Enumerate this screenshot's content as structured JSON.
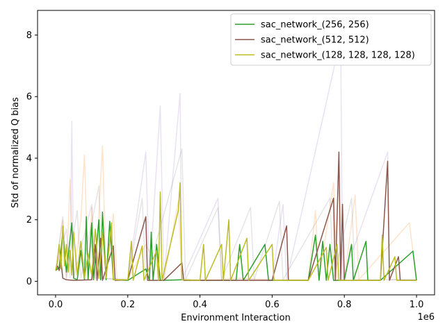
{
  "chart_data": {
    "type": "line",
    "title": "",
    "xlabel": "Environment Interaction",
    "ylabel": "Std of normalized Q bias",
    "x_offset_label": "1e6",
    "xlim": [
      -0.05,
      1.05
    ],
    "ylim": [
      -0.44,
      8.8
    ],
    "x_ticks": [
      0.0,
      0.2,
      0.4,
      0.6,
      0.8,
      1.0
    ],
    "x_tick_labels": [
      "0.0",
      "0.2",
      "0.4",
      "0.6",
      "0.8",
      "1.0"
    ],
    "y_ticks": [
      0,
      2,
      4,
      6,
      8
    ],
    "y_tick_labels": [
      "0",
      "2",
      "4",
      "6",
      "8"
    ],
    "grid": false,
    "legend_position": "top-right",
    "series": [
      {
        "name": "sac_network_(256, 256)",
        "color": "#2ca02c",
        "points": [
          [
            0.0,
            0.35
          ],
          [
            0.01,
            0.45
          ],
          [
            0.02,
            1.6
          ],
          [
            0.03,
            0.3
          ],
          [
            0.045,
            1.9
          ],
          [
            0.05,
            0.1
          ],
          [
            0.06,
            0.05
          ],
          [
            0.07,
            1.0
          ],
          [
            0.08,
            0.05
          ],
          [
            0.085,
            2.1
          ],
          [
            0.09,
            0.05
          ],
          [
            0.1,
            1.9
          ],
          [
            0.105,
            0.05
          ],
          [
            0.12,
            2.0
          ],
          [
            0.125,
            0.05
          ],
          [
            0.13,
            2.25
          ],
          [
            0.14,
            0.05
          ],
          [
            0.15,
            1.95
          ],
          [
            0.16,
            0.05
          ],
          [
            0.2,
            0.03
          ],
          [
            0.25,
            0.4
          ],
          [
            0.26,
            0.03
          ],
          [
            0.265,
            1.6
          ],
          [
            0.27,
            0.03
          ],
          [
            0.28,
            1.2
          ],
          [
            0.29,
            0.03
          ],
          [
            0.35,
            0.05
          ],
          [
            0.4,
            0.03
          ],
          [
            0.5,
            0.03
          ],
          [
            0.51,
            1.2
          ],
          [
            0.52,
            0.03
          ],
          [
            0.58,
            1.2
          ],
          [
            0.59,
            0.03
          ],
          [
            0.7,
            0.03
          ],
          [
            0.72,
            1.5
          ],
          [
            0.73,
            0.03
          ],
          [
            0.74,
            1.3
          ],
          [
            0.75,
            0.03
          ],
          [
            0.76,
            1.2
          ],
          [
            0.77,
            0.03
          ],
          [
            0.8,
            0.03
          ],
          [
            0.82,
            1.2
          ],
          [
            0.825,
            0.03
          ],
          [
            0.86,
            1.3
          ],
          [
            0.865,
            0.03
          ],
          [
            0.9,
            0.03
          ],
          [
            0.99,
            0.98
          ],
          [
            1.0,
            0.03
          ]
        ]
      },
      {
        "name": "sac_network_(512, 512)",
        "color": "#8c564b",
        "points": [
          [
            0.0,
            0.35
          ],
          [
            0.005,
            0.5
          ],
          [
            0.01,
            0.35
          ],
          [
            0.015,
            0.65
          ],
          [
            0.02,
            0.1
          ],
          [
            0.03,
            0.05
          ],
          [
            0.05,
            0.03
          ],
          [
            0.1,
            0.05
          ],
          [
            0.11,
            1.2
          ],
          [
            0.115,
            0.03
          ],
          [
            0.125,
            1.4
          ],
          [
            0.13,
            0.03
          ],
          [
            0.16,
            1.15
          ],
          [
            0.165,
            0.03
          ],
          [
            0.2,
            0.05
          ],
          [
            0.25,
            2.1
          ],
          [
            0.255,
            0.03
          ],
          [
            0.3,
            0.03
          ],
          [
            0.35,
            0.6
          ],
          [
            0.355,
            0.03
          ],
          [
            0.4,
            0.03
          ],
          [
            0.5,
            0.03
          ],
          [
            0.6,
            0.03
          ],
          [
            0.64,
            1.8
          ],
          [
            0.645,
            0.03
          ],
          [
            0.7,
            0.03
          ],
          [
            0.77,
            2.7
          ],
          [
            0.775,
            0.03
          ],
          [
            0.785,
            4.2
          ],
          [
            0.79,
            0.03
          ],
          [
            0.795,
            2.5
          ],
          [
            0.8,
            0.03
          ],
          [
            0.9,
            0.03
          ],
          [
            0.92,
            3.9
          ],
          [
            0.925,
            0.03
          ],
          [
            0.95,
            0.8
          ],
          [
            0.955,
            0.03
          ],
          [
            1.0,
            0.03
          ]
        ]
      },
      {
        "name": "sac_network_(128, 128, 128, 128)",
        "color": "#bcbd22",
        "points": [
          [
            0.0,
            0.35
          ],
          [
            0.005,
            0.6
          ],
          [
            0.01,
            1.2
          ],
          [
            0.015,
            0.4
          ],
          [
            0.02,
            1.8
          ],
          [
            0.025,
            0.5
          ],
          [
            0.03,
            1.2
          ],
          [
            0.035,
            0.3
          ],
          [
            0.04,
            1.0
          ],
          [
            0.045,
            0.2
          ],
          [
            0.05,
            1.6
          ],
          [
            0.06,
            0.2
          ],
          [
            0.07,
            1.3
          ],
          [
            0.08,
            0.1
          ],
          [
            0.09,
            0.9
          ],
          [
            0.1,
            0.2
          ],
          [
            0.11,
            1.7
          ],
          [
            0.12,
            0.1
          ],
          [
            0.13,
            1.6
          ],
          [
            0.14,
            0.1
          ],
          [
            0.155,
            1.9
          ],
          [
            0.16,
            0.05
          ],
          [
            0.2,
            0.05
          ],
          [
            0.21,
            1.3
          ],
          [
            0.215,
            0.03
          ],
          [
            0.24,
            1.15
          ],
          [
            0.245,
            0.03
          ],
          [
            0.28,
            1.0
          ],
          [
            0.285,
            0.03
          ],
          [
            0.29,
            2.9
          ],
          [
            0.295,
            0.03
          ],
          [
            0.34,
            2.3
          ],
          [
            0.345,
            3.2
          ],
          [
            0.35,
            0.05
          ],
          [
            0.4,
            0.03
          ],
          [
            0.41,
            1.2
          ],
          [
            0.415,
            0.03
          ],
          [
            0.46,
            1.2
          ],
          [
            0.465,
            0.03
          ],
          [
            0.48,
            2.0
          ],
          [
            0.485,
            0.03
          ],
          [
            0.53,
            1.4
          ],
          [
            0.535,
            0.03
          ],
          [
            0.6,
            1.2
          ],
          [
            0.605,
            0.03
          ],
          [
            0.7,
            0.03
          ],
          [
            0.75,
            1.1
          ],
          [
            0.755,
            0.03
          ],
          [
            0.78,
            1.2
          ],
          [
            0.785,
            0.03
          ],
          [
            0.9,
            0.03
          ],
          [
            0.905,
            1.5
          ],
          [
            0.91,
            0.03
          ],
          [
            0.94,
            0.8
          ],
          [
            0.945,
            0.03
          ],
          [
            1.0,
            0.03
          ]
        ]
      },
      {
        "name": "",
        "color": "#ff7f0e",
        "opacity": 0.22,
        "points": [
          [
            0.0,
            0.35
          ],
          [
            0.02,
            2.0
          ],
          [
            0.03,
            0.1
          ],
          [
            0.04,
            3.3
          ],
          [
            0.05,
            0.1
          ],
          [
            0.07,
            2.0
          ],
          [
            0.08,
            4.1
          ],
          [
            0.09,
            0.1
          ],
          [
            0.1,
            2.4
          ],
          [
            0.11,
            0.1
          ],
          [
            0.13,
            4.4
          ],
          [
            0.14,
            0.1
          ],
          [
            0.16,
            2.2
          ],
          [
            0.17,
            0.05
          ],
          [
            0.2,
            0.05
          ],
          [
            0.25,
            1.2
          ],
          [
            0.3,
            0.05
          ],
          [
            0.34,
            2.6
          ],
          [
            0.35,
            0.05
          ],
          [
            0.45,
            0.05
          ],
          [
            0.5,
            0.1
          ],
          [
            0.6,
            0.05
          ],
          [
            0.7,
            0.05
          ],
          [
            0.72,
            2.3
          ],
          [
            0.73,
            0.05
          ],
          [
            0.77,
            3.2
          ],
          [
            0.78,
            0.05
          ],
          [
            0.8,
            0.05
          ],
          [
            0.83,
            2.8
          ],
          [
            0.84,
            0.05
          ],
          [
            0.98,
            1.9
          ],
          [
            1.0,
            0.05
          ]
        ]
      },
      {
        "name": "",
        "color": "#9467bd",
        "opacity": 0.2,
        "points": [
          [
            0.0,
            0.35
          ],
          [
            0.03,
            1.7
          ],
          [
            0.04,
            0.1
          ],
          [
            0.045,
            5.2
          ],
          [
            0.05,
            0.1
          ],
          [
            0.1,
            2.5
          ],
          [
            0.11,
            0.1
          ],
          [
            0.2,
            0.05
          ],
          [
            0.25,
            4.2
          ],
          [
            0.26,
            0.05
          ],
          [
            0.29,
            5.7
          ],
          [
            0.3,
            0.05
          ],
          [
            0.345,
            6.1
          ],
          [
            0.35,
            0.05
          ],
          [
            0.45,
            2.7
          ],
          [
            0.46,
            0.05
          ],
          [
            0.6,
            0.05
          ],
          [
            0.63,
            2.5
          ],
          [
            0.64,
            0.05
          ],
          [
            0.79,
            7.9
          ],
          [
            0.795,
            0.05
          ],
          [
            0.92,
            4.2
          ],
          [
            0.925,
            0.05
          ],
          [
            1.0,
            0.05
          ]
        ]
      },
      {
        "name": "",
        "color": "#7f7f7f",
        "opacity": 0.2,
        "points": [
          [
            0.0,
            0.35
          ],
          [
            0.02,
            2.1
          ],
          [
            0.03,
            0.1
          ],
          [
            0.06,
            2.3
          ],
          [
            0.07,
            0.1
          ],
          [
            0.12,
            3.1
          ],
          [
            0.13,
            0.1
          ],
          [
            0.2,
            0.05
          ],
          [
            0.24,
            2.7
          ],
          [
            0.25,
            0.05
          ],
          [
            0.35,
            4.3
          ],
          [
            0.36,
            0.05
          ],
          [
            0.45,
            2.4
          ],
          [
            0.46,
            0.05
          ],
          [
            0.54,
            2.4
          ],
          [
            0.55,
            0.05
          ],
          [
            0.62,
            2.6
          ],
          [
            0.63,
            0.05
          ],
          [
            0.76,
            2.7
          ],
          [
            0.77,
            0.05
          ],
          [
            0.82,
            2.7
          ],
          [
            0.83,
            0.05
          ],
          [
            1.0,
            0.05
          ]
        ]
      }
    ]
  }
}
